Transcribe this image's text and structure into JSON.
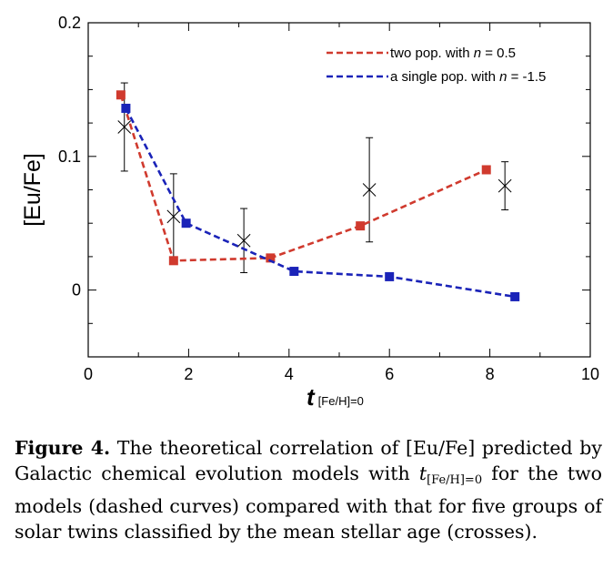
{
  "chart_data": {
    "type": "line",
    "xlim": [
      0,
      10
    ],
    "ylim": [
      -0.05,
      0.2
    ],
    "x_ticks": [
      0,
      2,
      4,
      6,
      8,
      10
    ],
    "x_tick_labels": [
      "0",
      "2",
      "4",
      "6",
      "8",
      "10"
    ],
    "y_ticks": [
      0,
      0.1,
      0.2
    ],
    "y_tick_labels": [
      "0",
      "0.1",
      "0.2"
    ],
    "ylabel": "[Eu/Fe]",
    "xlabel_main": "t",
    "xlabel_sub": "[Fe/H]=0",
    "legend_position": "top-right",
    "series": [
      {
        "name": "two pop. with n = 0.5",
        "legend_prefix": "two pop. with ",
        "legend_var": "n",
        "legend_suffix": " = 0.5",
        "color": "#d03a2e",
        "style": "dashed",
        "marker": "square",
        "x": [
          0.65,
          1.7,
          3.63,
          5.42,
          7.93
        ],
        "y": [
          0.146,
          0.022,
          0.024,
          0.048,
          0.09
        ]
      },
      {
        "name": "a single pop. with n = -1.5",
        "legend_prefix": "a single pop. with ",
        "legend_var": "n",
        "legend_suffix": " = -1.5",
        "color": "#1a23b8",
        "style": "dashed",
        "marker": "square",
        "x": [
          0.75,
          1.95,
          4.1,
          6.0,
          8.5
        ],
        "y": [
          0.136,
          0.05,
          0.014,
          0.01,
          -0.005
        ]
      }
    ],
    "observations": {
      "marker": "cross",
      "color": "#000000",
      "points": [
        {
          "x": 0.72,
          "y": 0.122,
          "y_low": 0.089,
          "y_high": 0.155
        },
        {
          "x": 1.7,
          "y": 0.055,
          "y_low": 0.022,
          "y_high": 0.087
        },
        {
          "x": 3.1,
          "y": 0.037,
          "y_low": 0.013,
          "y_high": 0.061
        },
        {
          "x": 5.6,
          "y": 0.075,
          "y_low": 0.036,
          "y_high": 0.114
        },
        {
          "x": 8.3,
          "y": 0.078,
          "y_low": 0.06,
          "y_high": 0.096
        }
      ]
    }
  },
  "caption": {
    "label": "Figure 4.",
    "text_before": " The theoretical correlation of [Eu/Fe] predicted by Galactic chemical evolution models with ",
    "math_var": "t",
    "math_sub": "[Fe/H]=0",
    "text_after": " for the two models (dashed curves) compared with that for five groups of solar twins classified by the mean stellar age (crosses)."
  }
}
